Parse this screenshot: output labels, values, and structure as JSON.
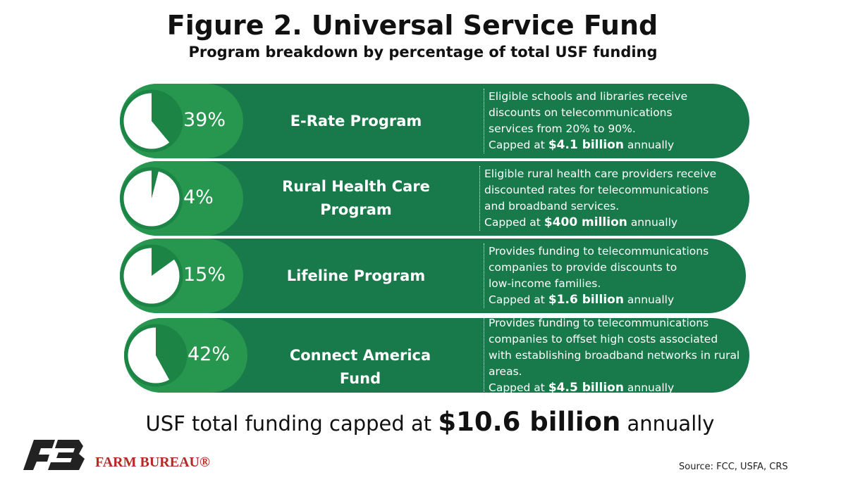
{
  "header": {
    "title": "Figure 2. Universal Service Fund",
    "subtitle": "Program breakdown by percentage of total USF funding"
  },
  "programs": [
    {
      "share": 39,
      "share_label": "39%",
      "name": [
        "E-Rate Program"
      ],
      "description": [
        "Eligible schools and libraries receive",
        "discounts on telecommunications",
        "services from 20% to 90%."
      ],
      "cap_prefix": "Capped at",
      "cap_amount": "$4.1 billion",
      "cap_suffix": "annually"
    },
    {
      "share": 4,
      "share_label": "4%",
      "name": [
        "Rural Health Care",
        "Program"
      ],
      "description": [
        "Eligible rural health care providers receive",
        "discounted rates for telecommunications",
        "and broadband services."
      ],
      "cap_prefix": "Capped at",
      "cap_amount": "$400 million",
      "cap_suffix": "annually"
    },
    {
      "share": 15,
      "share_label": "15%",
      "name": [
        "Lifeline Program"
      ],
      "description": [
        "Provides funding to telecommunications",
        "companies to provide discounts to",
        "low-income families."
      ],
      "cap_prefix": "Capped at",
      "cap_amount": "$1.6 billion",
      "cap_suffix": "annually"
    },
    {
      "share": 42,
      "share_label": "42%",
      "name": [
        "Connect America Fund"
      ],
      "description": [
        "Provides funding to telecommunications",
        "companies to offset high costs associated",
        "with establishing broadband networks in rural",
        "areas."
      ],
      "cap_prefix": "Capped at",
      "cap_amount": "$4.5 billion",
      "cap_suffix": "annually"
    }
  ],
  "footer": {
    "total_prefix": "USF total funding capped at",
    "total_amount": "$10.6 billion",
    "total_suffix": "annually",
    "logo_text": "FARM BUREAU®",
    "source": "Source: FCC, USFA, CRS"
  }
}
